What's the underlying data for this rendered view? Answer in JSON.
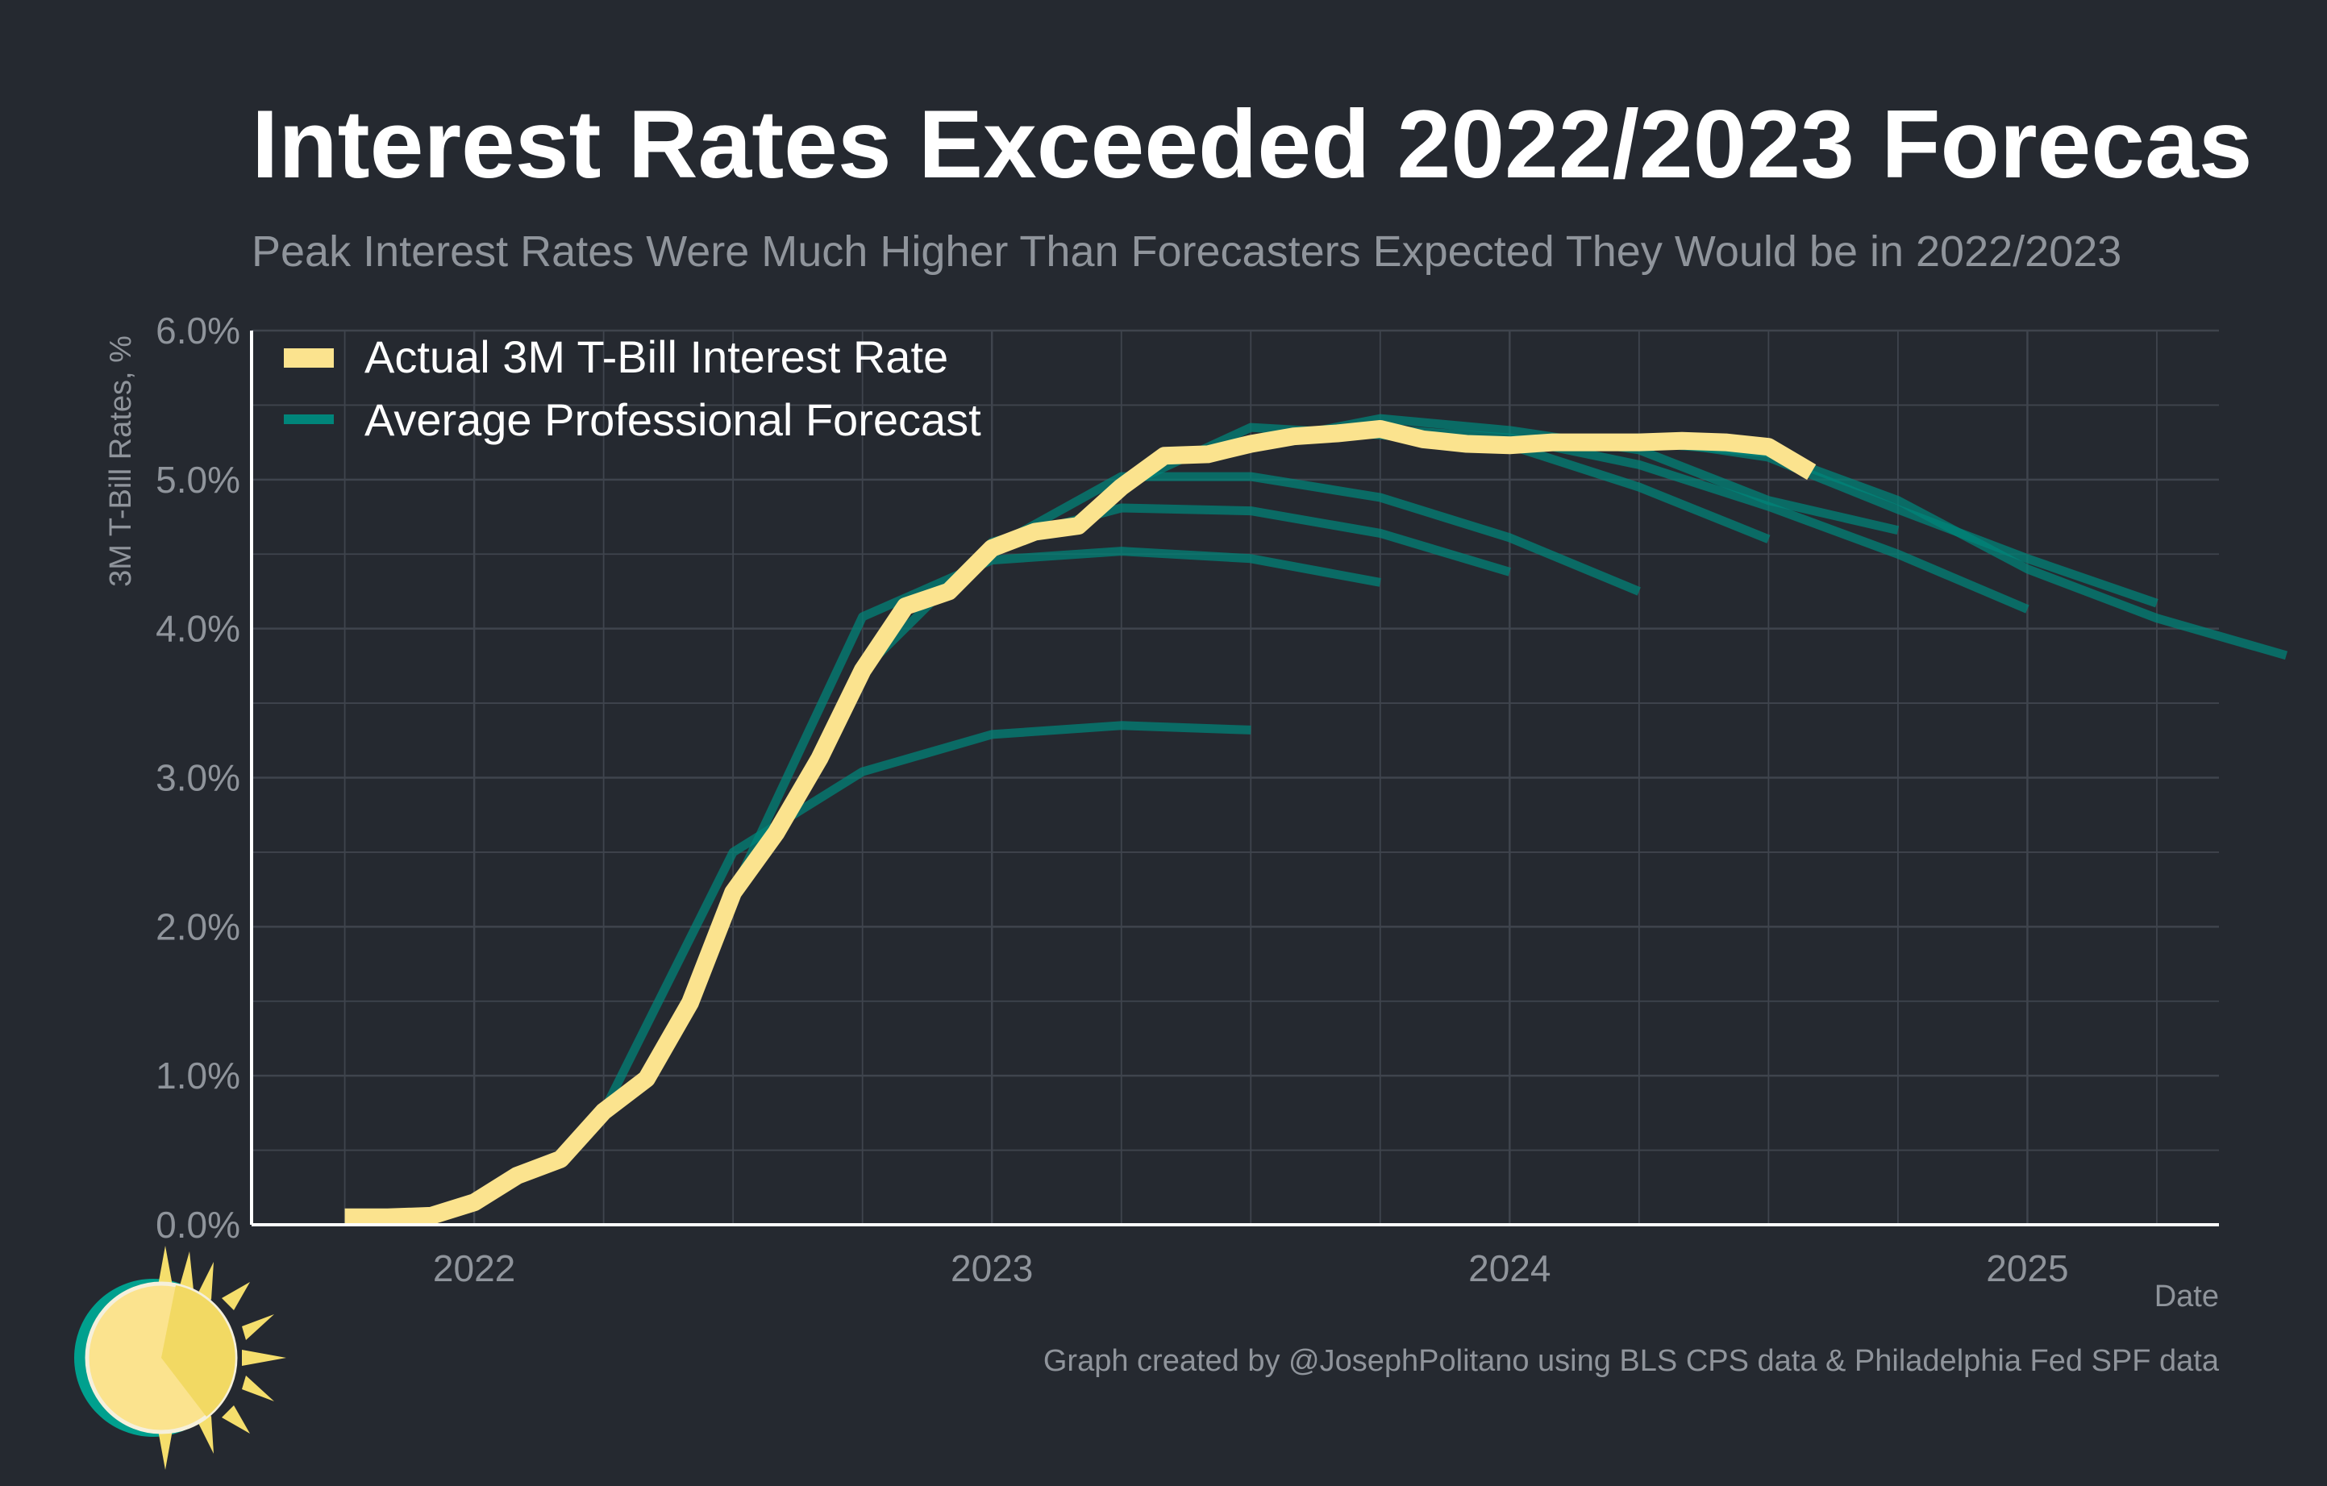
{
  "chart_data": {
    "type": "line",
    "title": "Interest Rates Exceeded 2022/2023 Forecas",
    "subtitle": "Peak Interest Rates Were Much Higher Than Forecasters Expected They Would be in 2022/2023",
    "xlabel": "Date",
    "ylabel": "3M T-Bill Rates, %",
    "xlim": [
      2021.57,
      2025.37
    ],
    "ylim": [
      0,
      6
    ],
    "x_ticks": [
      {
        "value": 2022,
        "label": "2022"
      },
      {
        "value": 2023,
        "label": "2023"
      },
      {
        "value": 2024,
        "label": "2024"
      },
      {
        "value": 2025,
        "label": "2025"
      }
    ],
    "y_ticks": [
      {
        "value": 0,
        "label": "0.0%"
      },
      {
        "value": 1,
        "label": "1.0%"
      },
      {
        "value": 2,
        "label": "2.0%"
      },
      {
        "value": 3,
        "label": "3.0%"
      },
      {
        "value": 4,
        "label": "4.0%"
      },
      {
        "value": 5,
        "label": "5.0%"
      },
      {
        "value": 6,
        "label": "6.0%"
      }
    ],
    "grid": true,
    "legend_position": "top-left",
    "legend": [
      {
        "label": "Actual 3M T-Bill Interest Rate",
        "color": "#fbe38e"
      },
      {
        "label": "Average Professional Forecast",
        "color": "#00857a"
      }
    ],
    "actual": {
      "name": "Actual 3M T-Bill Interest Rate",
      "color": "#fbe38e",
      "x": [
        2021.75,
        2021.833,
        2021.917,
        2022.0,
        2022.083,
        2022.167,
        2022.25,
        2022.333,
        2022.417,
        2022.5,
        2022.583,
        2022.667,
        2022.75,
        2022.833,
        2022.917,
        2023.0,
        2023.083,
        2023.167,
        2023.25,
        2023.333,
        2023.417,
        2023.5,
        2023.583,
        2023.667,
        2023.75,
        2023.833,
        2023.917,
        2024.0,
        2024.083,
        2024.167,
        2024.25,
        2024.333,
        2024.417,
        2024.5,
        2024.583
      ],
      "y": [
        0.05,
        0.05,
        0.06,
        0.15,
        0.33,
        0.44,
        0.76,
        0.98,
        1.49,
        2.23,
        2.63,
        3.13,
        3.72,
        4.15,
        4.25,
        4.54,
        4.65,
        4.69,
        4.95,
        5.16,
        5.17,
        5.24,
        5.29,
        5.31,
        5.34,
        5.27,
        5.24,
        5.23,
        5.25,
        5.25,
        5.25,
        5.26,
        5.25,
        5.22,
        5.05
      ]
    },
    "forecasts": [
      {
        "x": [
          2022.25,
          2022.5,
          2022.75,
          2023.0,
          2023.25,
          2023.5
        ],
        "y": [
          0.76,
          2.5,
          3.04,
          3.29,
          3.35,
          3.32
        ]
      },
      {
        "x": [
          2022.5,
          2022.75,
          2023.0,
          2023.25,
          2023.5,
          2023.75
        ],
        "y": [
          2.23,
          4.08,
          4.46,
          4.52,
          4.47,
          4.31
        ]
      },
      {
        "x": [
          2022.75,
          2023.0,
          2023.25,
          2023.5,
          2023.75,
          2024.0
        ],
        "y": [
          3.72,
          4.58,
          4.81,
          4.79,
          4.64,
          4.38
        ]
      },
      {
        "x": [
          2023.0,
          2023.25,
          2023.5,
          2023.75,
          2024.0,
          2024.25
        ],
        "y": [
          4.54,
          5.02,
          5.02,
          4.88,
          4.61,
          4.25
        ]
      },
      {
        "x": [
          2023.25,
          2023.5,
          2023.75,
          2024.0,
          2024.25,
          2024.5
        ],
        "y": [
          4.95,
          5.35,
          5.3,
          5.23,
          4.95,
          4.6
        ]
      },
      {
        "x": [
          2023.5,
          2023.75,
          2024.0,
          2024.25,
          2024.5,
          2024.75
        ],
        "y": [
          5.24,
          5.41,
          5.33,
          5.2,
          4.86,
          4.66
        ]
      },
      {
        "x": [
          2023.75,
          2024.0,
          2024.25,
          2024.5,
          2024.75,
          2025.0
        ],
        "y": [
          5.34,
          5.28,
          5.1,
          4.82,
          4.5,
          4.13
        ]
      },
      {
        "x": [
          2024.0,
          2024.25,
          2024.5,
          2024.75,
          2025.0,
          2025.25
        ],
        "y": [
          5.23,
          5.28,
          5.15,
          4.8,
          4.47,
          4.17
        ]
      },
      {
        "x": [
          2024.25,
          2024.5,
          2024.75,
          2025.0,
          2025.25,
          2025.5
        ],
        "y": [
          5.25,
          5.18,
          4.86,
          4.4,
          4.07,
          3.82
        ]
      }
    ],
    "forecast_color": "#00857a"
  },
  "footer": {
    "credit": "Graph created by @JosephPolitano using BLS CPS data & Philadelphia Fed SPF data"
  },
  "colors": {
    "background": "#252930",
    "grid": "#3f444d",
    "axis": "#ffffff",
    "muted_text": "#8f949b",
    "sun_teal": "#00a08e",
    "sun_yellow": "#f5de6c"
  },
  "logo": {
    "icon": "sun-icon"
  }
}
